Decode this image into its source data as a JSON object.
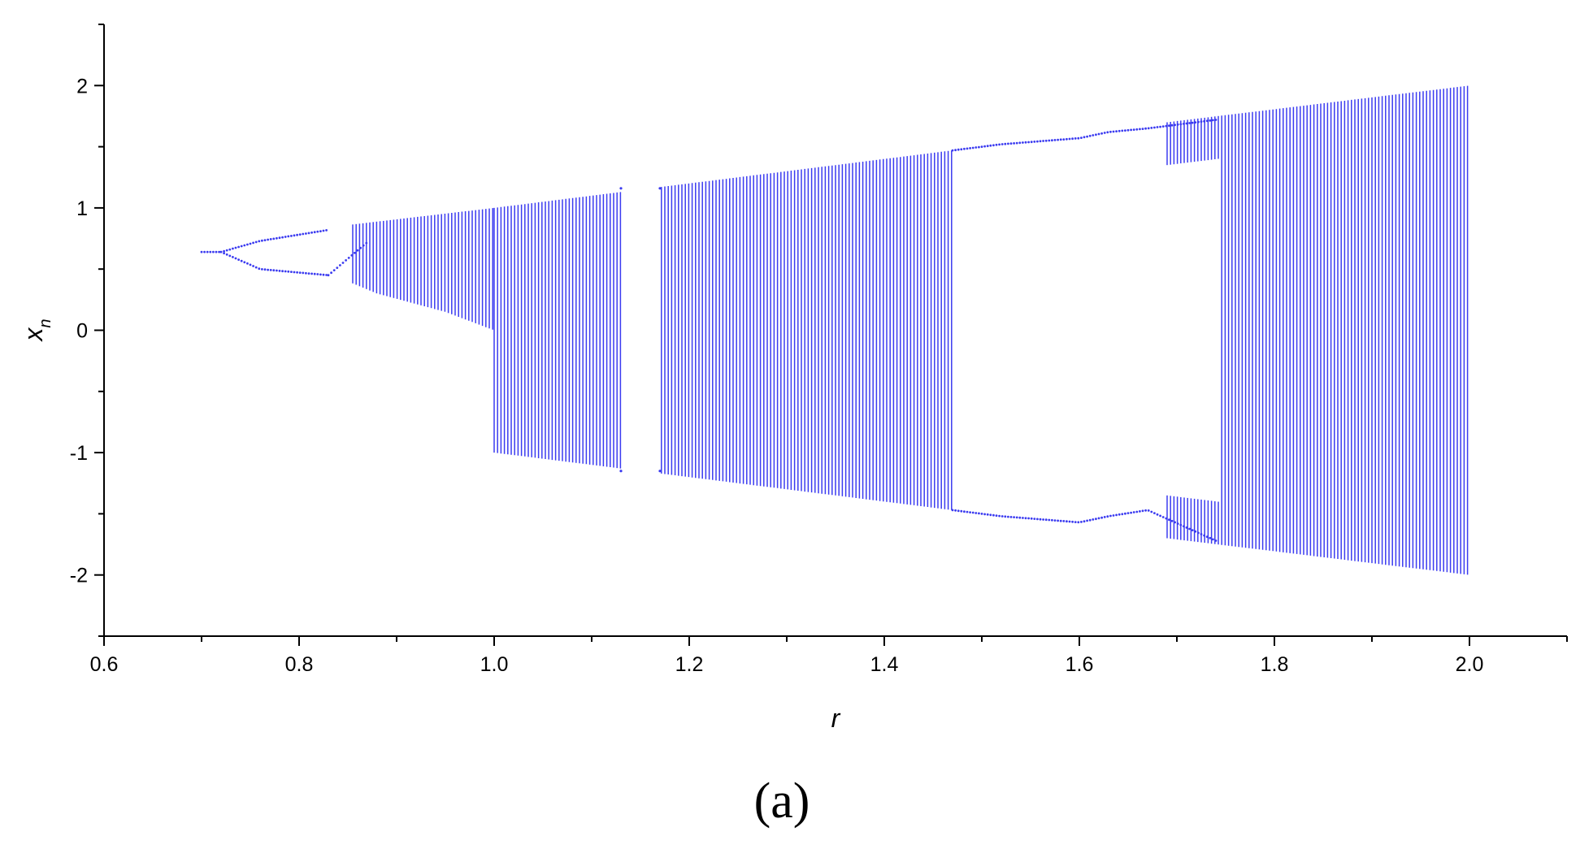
{
  "chart_data": {
    "type": "scatter",
    "title": "",
    "xlabel": "r",
    "ylabel": "x",
    "ylabel_subscript": "n",
    "xlim": [
      0.6,
      2.1
    ],
    "ylim": [
      -2.5,
      2.5
    ],
    "xticks": [
      0.6,
      0.8,
      1.0,
      1.2,
      1.4,
      1.6,
      1.8,
      2.0
    ],
    "xtick_labels": [
      "0.6",
      "0.8",
      "1.0",
      "1.2",
      "1.4",
      "1.6",
      "1.8",
      "2.0"
    ],
    "yticks": [
      2,
      1,
      0,
      -1,
      -2
    ],
    "ytick_labels": [
      "2",
      "1",
      "0",
      "-1",
      "-2"
    ],
    "panel_label": "(a)",
    "grid": false,
    "legend": false,
    "color": "#3b3bf0",
    "axis_color": "#000000",
    "bifurcation": {
      "fixed_point": {
        "r": [
          0.7,
          0.72
        ],
        "x": 0.64
      },
      "period2_upper": [
        [
          0.72,
          0.64
        ],
        [
          0.76,
          0.73
        ],
        [
          0.83,
          0.82
        ]
      ],
      "period2_lower": [
        [
          0.72,
          0.64
        ],
        [
          0.76,
          0.5
        ],
        [
          0.83,
          0.45
        ]
      ],
      "period4_inner": [
        [
          0.83,
          0.45
        ],
        [
          0.87,
          0.72
        ]
      ],
      "chaos_top": [
        [
          0.85,
          0.86
        ],
        [
          1.0,
          1.0
        ],
        [
          1.47,
          1.47
        ]
      ],
      "chaos_bottom_before_1": [
        [
          0.85,
          0.4
        ],
        [
          0.88,
          0.3
        ],
        [
          0.95,
          0.15
        ],
        [
          1.0,
          0.0
        ]
      ],
      "chaos_bottom_after_1": [
        [
          1.0,
          -1.0
        ],
        [
          1.47,
          -1.47
        ]
      ],
      "periodic_window_1": {
        "r": [
          1.13,
          1.17
        ],
        "top": 1.16,
        "bottom": -1.15
      },
      "periodic_window_2": {
        "r": [
          1.47,
          1.74
        ],
        "upper": [
          [
            1.47,
            1.47
          ],
          [
            1.52,
            1.52
          ],
          [
            1.6,
            1.57
          ],
          [
            1.63,
            1.62
          ],
          [
            1.67,
            1.65
          ],
          [
            1.74,
            1.72
          ]
        ],
        "lower": [
          [
            1.47,
            -1.47
          ],
          [
            1.52,
            -1.52
          ],
          [
            1.6,
            -1.57
          ],
          [
            1.63,
            -1.52
          ],
          [
            1.67,
            -1.47
          ],
          [
            1.74,
            -1.72
          ]
        ]
      },
      "late_chaos": {
        "r": [
          1.69,
          2.0
        ],
        "top_start": 1.7,
        "top_end": 2.0,
        "bottom_start": -1.7,
        "bottom_end": -2.0
      }
    }
  }
}
